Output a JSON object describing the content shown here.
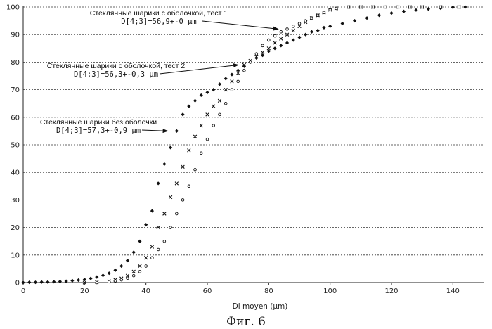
{
  "chart_data": {
    "type": "scatter",
    "xlabel": "Dl moyen (µm)",
    "ylabel": "",
    "xlim": [
      0,
      150
    ],
    "ylim": [
      0,
      100
    ],
    "xticks": [
      0,
      20,
      40,
      60,
      80,
      100,
      120,
      140
    ],
    "yticks": [
      0,
      10,
      20,
      30,
      40,
      50,
      60,
      70,
      80,
      90,
      100
    ],
    "grid": "horizontal dotted",
    "caption": "Фиг. 6",
    "colors": {
      "points": "#111111",
      "grid": "#333333"
    },
    "series": [
      {
        "marker": "diamond",
        "x": [
          0,
          2,
          4,
          6,
          8,
          10,
          12,
          14,
          16,
          18,
          20,
          22,
          24,
          26,
          28,
          30,
          32,
          34,
          36,
          38,
          40,
          42,
          44,
          46,
          48,
          50,
          52,
          54,
          56,
          58,
          60,
          62,
          64,
          66,
          68,
          70,
          72,
          74,
          76,
          78,
          80,
          82,
          84,
          86,
          88,
          90,
          92,
          94,
          96,
          98,
          100,
          104,
          108,
          112,
          116,
          120,
          124,
          128,
          132,
          136,
          140,
          144
        ],
        "y": [
          0,
          0.1,
          0.1,
          0.2,
          0.2,
          0.3,
          0.4,
          0.5,
          0.7,
          0.9,
          1.1,
          1.5,
          2,
          2.6,
          3.4,
          4.5,
          6,
          8,
          11,
          15,
          21,
          26,
          36,
          43,
          49,
          55,
          61,
          64,
          66,
          68,
          69,
          70,
          72,
          74,
          75.5,
          77,
          78.5,
          80,
          81.5,
          82.5,
          84,
          85,
          86,
          87,
          88,
          89,
          90,
          91,
          91.5,
          92.5,
          93,
          94,
          95,
          96,
          97,
          97.8,
          98.4,
          98.9,
          99.3,
          99.6,
          99.9,
          100
        ]
      },
      {
        "marker": "x",
        "x": [
          20,
          24,
          28,
          30,
          32,
          34,
          36,
          38,
          40,
          42,
          44,
          46,
          48,
          50,
          52,
          54,
          56,
          58,
          60,
          62,
          64,
          66,
          68,
          70,
          72,
          74,
          76,
          78,
          80,
          82,
          84,
          86,
          88,
          90,
          92,
          94,
          96,
          98,
          100,
          102,
          106,
          110,
          114,
          118,
          122,
          126,
          130,
          136,
          142
        ],
        "y": [
          0,
          0.2,
          0.5,
          1,
          1.5,
          2.5,
          4,
          6,
          9,
          13,
          20,
          25,
          31,
          36,
          42,
          48,
          53,
          57,
          61,
          64,
          66,
          70,
          73,
          76,
          79,
          80.5,
          82,
          83.5,
          85,
          87,
          88.5,
          90,
          91.5,
          93,
          94.5,
          96,
          97,
          98,
          99,
          99.5,
          100,
          100,
          100,
          100,
          100,
          100,
          100,
          100,
          100
        ]
      },
      {
        "marker": "circle",
        "x": [
          24,
          28,
          30,
          32,
          34,
          36,
          38,
          40,
          42,
          44,
          46,
          48,
          50,
          52,
          54,
          56,
          58,
          60,
          62,
          64,
          66,
          68,
          70,
          72,
          74,
          76,
          78,
          80,
          82,
          84,
          86,
          88,
          90,
          92,
          94,
          96,
          98,
          100,
          102,
          106,
          110,
          114,
          118,
          122,
          126,
          130,
          136,
          142
        ],
        "y": [
          0,
          0.3,
          0.6,
          1,
          1.6,
          2.5,
          4,
          6,
          9,
          12,
          15,
          20,
          25,
          30,
          35,
          41,
          47,
          52,
          57,
          61,
          65,
          70,
          73,
          77,
          80,
          83,
          86,
          88,
          89.5,
          91,
          92,
          93,
          94,
          95,
          96,
          97,
          98,
          99,
          99.5,
          100,
          100,
          100,
          100,
          100,
          100,
          100,
          100,
          100
        ]
      }
    ],
    "annotations": [
      {
        "lines": [
          "Стеклянные шарики с оболочкой, тест 1",
          "D[4;3]=56,9+-0 µm"
        ],
        "arrow_to": [
          84,
          92
        ]
      },
      {
        "lines": [
          "Стеклянные шарики с оболочкой, тест 2",
          "D[4;3]=56,3+-0,3 µm"
        ],
        "arrow_to": [
          71,
          79
        ]
      },
      {
        "lines": [
          "Стеклянные шарики без оболочки",
          "D[4;3]=57,3+-0,9 µm"
        ],
        "arrow_to": [
          48,
          55
        ]
      }
    ]
  }
}
